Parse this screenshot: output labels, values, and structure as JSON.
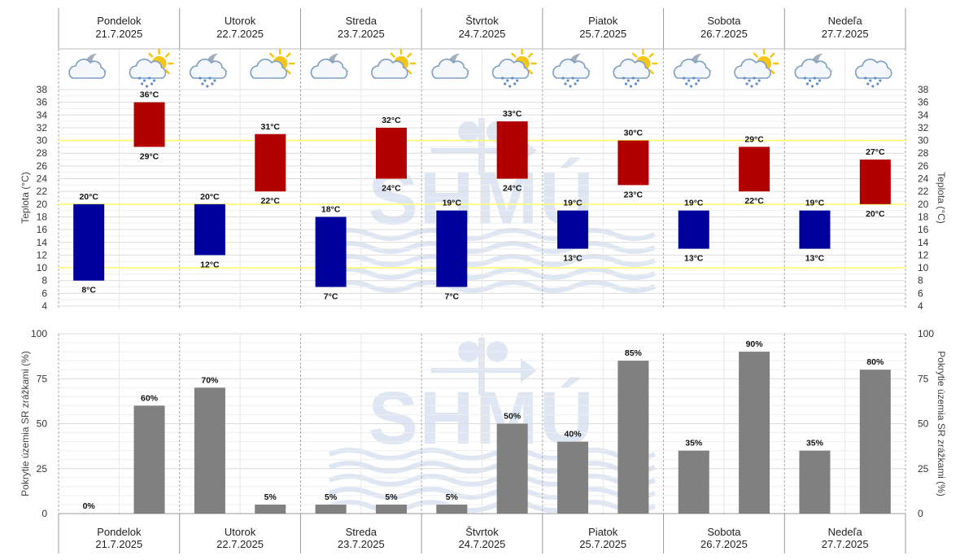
{
  "days": [
    {
      "name": "Pondelok",
      "date": "21.7.2025",
      "night_icon": "cloudy-night-icon",
      "day_icon": "sun-cloud-rain-icon"
    },
    {
      "name": "Utorok",
      "date": "22.7.2025",
      "night_icon": "cloud-night-rain-icon",
      "day_icon": "sun-behind-cloud-icon"
    },
    {
      "name": "Streda",
      "date": "23.7.2025",
      "night_icon": "cloudy-night-icon",
      "day_icon": "sun-behind-cloud-icon"
    },
    {
      "name": "Štvrtok",
      "date": "24.7.2025",
      "night_icon": "cloudy-night-icon",
      "day_icon": "sun-cloud-rain-icon"
    },
    {
      "name": "Piatok",
      "date": "25.7.2025",
      "night_icon": "cloud-night-rain-icon",
      "day_icon": "sun-cloud-rain-icon"
    },
    {
      "name": "Sobota",
      "date": "26.7.2025",
      "night_icon": "cloud-night-rain-icon",
      "day_icon": "sun-cloud-rain-icon"
    },
    {
      "name": "Nedeľa",
      "date": "27.7.2025",
      "night_icon": "cloud-night-rain-icon",
      "day_icon": "cloud-rain-icon"
    }
  ],
  "watermark": "SHMÚ",
  "colors": {
    "night_bar": "#00009c",
    "day_bar": "#b20000",
    "precip_bar": "#808080",
    "ref_line": "#ffff66",
    "watermark": "#dde6f2"
  },
  "chart_data": [
    {
      "type": "bar",
      "ylabel": "Teplota (°C)",
      "ylabel_right": "Teplota (°C)",
      "ylim": [
        4,
        38
      ],
      "yticks": [
        4,
        6,
        8,
        10,
        12,
        14,
        16,
        18,
        20,
        22,
        24,
        26,
        28,
        30,
        32,
        34,
        36,
        38
      ],
      "reference_lines": [
        10,
        20,
        30
      ],
      "unit": "°C",
      "series": [
        {
          "key": "night",
          "min": [
            8,
            12,
            7,
            7,
            13,
            13,
            13
          ],
          "max": [
            20,
            20,
            18,
            19,
            19,
            19,
            19
          ]
        },
        {
          "key": "day",
          "min": [
            29,
            22,
            24,
            24,
            23,
            22,
            20
          ],
          "max": [
            36,
            31,
            32,
            33,
            30,
            29,
            27
          ]
        }
      ]
    },
    {
      "type": "bar",
      "ylabel": "Pokrytie územia SR zrážkami (%)",
      "ylabel_right": "Pokrytie územia SR zrážkami (%)",
      "ylim": [
        0,
        100
      ],
      "yticks": [
        0,
        25,
        50,
        75,
        100
      ],
      "unit": "%",
      "series": [
        {
          "key": "night",
          "values": [
            0,
            70,
            5,
            5,
            40,
            35,
            35
          ]
        },
        {
          "key": "day",
          "values": [
            60,
            5,
            5,
            50,
            85,
            90,
            80
          ]
        }
      ]
    }
  ]
}
